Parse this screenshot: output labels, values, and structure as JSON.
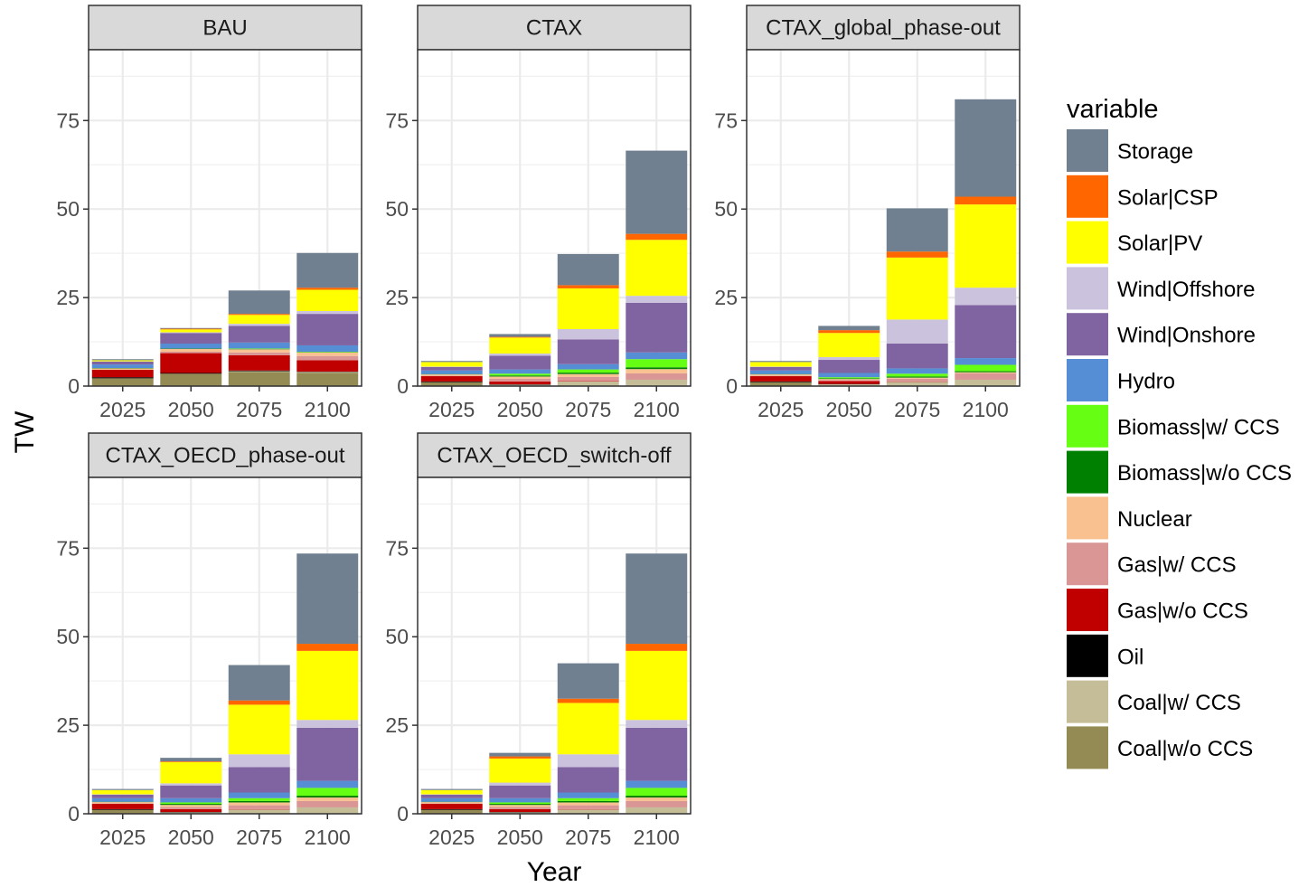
{
  "chart_data": {
    "type": "bar",
    "stacked": true,
    "facet": true,
    "xlabel": "Year",
    "ylabel": "TW",
    "ylim": [
      0,
      95
    ],
    "yticks": [
      0,
      25,
      50,
      75
    ],
    "categories": [
      "2025",
      "2050",
      "2075",
      "2100"
    ],
    "grid": true,
    "legend": {
      "title": "variable",
      "placement": "right",
      "entries": [
        {
          "name": "Storage",
          "color": "#708090"
        },
        {
          "name": "Solar|CSP",
          "color": "#FF6600"
        },
        {
          "name": "Solar|PV",
          "color": "#FFFF00"
        },
        {
          "name": "Wind|Offshore",
          "color": "#CBC3DD"
        },
        {
          "name": "Wind|Onshore",
          "color": "#8064A2"
        },
        {
          "name": "Hydro",
          "color": "#558ED5"
        },
        {
          "name": "Biomass|w/ CCS",
          "color": "#66FF13"
        },
        {
          "name": "Biomass|w/o CCS",
          "color": "#008000"
        },
        {
          "name": "Nuclear",
          "color": "#F9C090"
        },
        {
          "name": "Gas|w/ CCS",
          "color": "#D99694"
        },
        {
          "name": "Gas|w/o CCS",
          "color": "#C00000"
        },
        {
          "name": "Oil",
          "color": "#000000"
        },
        {
          "name": "Coal|w/ CCS",
          "color": "#C4BD97"
        },
        {
          "name": "Coal|w/o CCS",
          "color": "#948A54"
        }
      ]
    },
    "stack_order": [
      "Coal|w/o CCS",
      "Coal|w/ CCS",
      "Oil",
      "Gas|w/o CCS",
      "Gas|w/ CCS",
      "Nuclear",
      "Biomass|w/o CCS",
      "Biomass|w/ CCS",
      "Hydro",
      "Wind|Onshore",
      "Wind|Offshore",
      "Solar|PV",
      "Solar|CSP",
      "Storage"
    ],
    "panels": [
      {
        "title": "BAU",
        "series": [
          {
            "name": "Coal|w/o CCS",
            "values": [
              2.2,
              3.5,
              4.0,
              3.7
            ]
          },
          {
            "name": "Coal|w/ CCS",
            "values": [
              0,
              0,
              0.2,
              0.3
            ]
          },
          {
            "name": "Oil",
            "values": [
              0.3,
              0.2,
              0.2,
              0.1
            ]
          },
          {
            "name": "Gas|w/o CCS",
            "values": [
              2.1,
              5.6,
              4.3,
              3.2
            ]
          },
          {
            "name": "Gas|w/ CCS",
            "values": [
              0,
              0.4,
              0.8,
              1.2
            ]
          },
          {
            "name": "Nuclear",
            "values": [
              0.4,
              0.8,
              0.9,
              1.0
            ]
          },
          {
            "name": "Biomass|w/o CCS",
            "values": [
              0.1,
              0.1,
              0.1,
              0.1
            ]
          },
          {
            "name": "Biomass|w/ CCS",
            "values": [
              0,
              0,
              0.1,
              0.1
            ]
          },
          {
            "name": "Hydro",
            "values": [
              1.0,
              1.4,
              1.7,
              1.8
            ]
          },
          {
            "name": "Wind|Onshore",
            "values": [
              0.8,
              3.0,
              4.7,
              8.9
            ]
          },
          {
            "name": "Wind|Offshore",
            "values": [
              0.1,
              0.2,
              0.6,
              0.8
            ]
          },
          {
            "name": "Solar|PV",
            "values": [
              0.3,
              0.8,
              2.5,
              6.0
            ]
          },
          {
            "name": "Solar|CSP",
            "values": [
              0,
              0.2,
              0.3,
              0.6
            ]
          },
          {
            "name": "Storage",
            "values": [
              0.3,
              0.2,
              6.6,
              9.8
            ]
          }
        ]
      },
      {
        "title": "CTAX",
        "series": [
          {
            "name": "Coal|w/o CCS",
            "values": [
              1.1,
              0.2,
              0,
              0
            ]
          },
          {
            "name": "Coal|w/ CCS",
            "values": [
              0,
              0.2,
              1.3,
              1.8
            ]
          },
          {
            "name": "Oil",
            "values": [
              0.2,
              0.1,
              0,
              0
            ]
          },
          {
            "name": "Gas|w/o CCS",
            "values": [
              1.5,
              0.8,
              0.1,
              0
            ]
          },
          {
            "name": "Gas|w/ CCS",
            "values": [
              0.1,
              0.8,
              1.2,
              1.8
            ]
          },
          {
            "name": "Nuclear",
            "values": [
              0.4,
              0.6,
              0.8,
              1.2
            ]
          },
          {
            "name": "Biomass|w/o CCS",
            "values": [
              0.1,
              0.3,
              0.4,
              0.5
            ]
          },
          {
            "name": "Biomass|w/ CCS",
            "values": [
              0,
              0.5,
              0.9,
              2.3
            ]
          },
          {
            "name": "Hydro",
            "values": [
              1.0,
              1.2,
              1.5,
              1.9
            ]
          },
          {
            "name": "Wind|Onshore",
            "values": [
              1.0,
              3.9,
              7.0,
              14.0
            ]
          },
          {
            "name": "Wind|Offshore",
            "values": [
              0.1,
              0.6,
              2.9,
              2.0
            ]
          },
          {
            "name": "Solar|PV",
            "values": [
              1.3,
              4.5,
              11.5,
              15.8
            ]
          },
          {
            "name": "Solar|CSP",
            "values": [
              0,
              0.2,
              0.9,
              1.7
            ]
          },
          {
            "name": "Storage",
            "values": [
              0.3,
              0.8,
              8.8,
              23.5
            ]
          }
        ]
      },
      {
        "title": "CTAX_global_phase-out",
        "series": [
          {
            "name": "Coal|w/o CCS",
            "values": [
              1.1,
              0.2,
              0,
              0
            ]
          },
          {
            "name": "Coal|w/ CCS",
            "values": [
              0,
              0.3,
              1.2,
              1.8
            ]
          },
          {
            "name": "Oil",
            "values": [
              0.2,
              0.1,
              0,
              0
            ]
          },
          {
            "name": "Gas|w/o CCS",
            "values": [
              1.5,
              0.8,
              0.1,
              0
            ]
          },
          {
            "name": "Gas|w/ CCS",
            "values": [
              0.1,
              0.3,
              0.8,
              1.8
            ]
          },
          {
            "name": "Nuclear",
            "values": [
              0.4,
              0.3,
              0.3,
              0.3
            ]
          },
          {
            "name": "Biomass|w/o CCS",
            "values": [
              0.1,
              0.2,
              0.3,
              0.3
            ]
          },
          {
            "name": "Biomass|w/ CCS",
            "values": [
              0,
              0.3,
              0.8,
              1.8
            ]
          },
          {
            "name": "Hydro",
            "values": [
              1.0,
              1.2,
              1.5,
              1.9
            ]
          },
          {
            "name": "Wind|Onshore",
            "values": [
              1.0,
              3.7,
              7.0,
              15.0
            ]
          },
          {
            "name": "Wind|Offshore",
            "values": [
              0.1,
              0.8,
              6.8,
              4.9
            ]
          },
          {
            "name": "Solar|PV",
            "values": [
              1.3,
              6.8,
              17.5,
              23.5
            ]
          },
          {
            "name": "Solar|CSP",
            "values": [
              0,
              0.8,
              1.7,
              2.2
            ]
          },
          {
            "name": "Storage",
            "values": [
              0.3,
              1.2,
              12.2,
              27.5
            ]
          }
        ]
      },
      {
        "title": "CTAX_OECD_phase-out",
        "series": [
          {
            "name": "Coal|w/o CCS",
            "values": [
              1.1,
              0.2,
              0,
              0
            ]
          },
          {
            "name": "Coal|w/ CCS",
            "values": [
              0,
              0.2,
              1.2,
              1.8
            ]
          },
          {
            "name": "Oil",
            "values": [
              0.2,
              0.1,
              0,
              0
            ]
          },
          {
            "name": "Gas|w/o CCS",
            "values": [
              1.5,
              0.8,
              0.1,
              0
            ]
          },
          {
            "name": "Gas|w/ CCS",
            "values": [
              0.1,
              0.6,
              1.1,
              1.8
            ]
          },
          {
            "name": "Nuclear",
            "values": [
              0.4,
              0.6,
              0.8,
              1.0
            ]
          },
          {
            "name": "Biomass|w/o CCS",
            "values": [
              0.1,
              0.3,
              0.4,
              0.5
            ]
          },
          {
            "name": "Biomass|w/ CCS",
            "values": [
              0,
              0.4,
              0.8,
              2.2
            ]
          },
          {
            "name": "Hydro",
            "values": [
              1.0,
              1.2,
              1.6,
              2.0
            ]
          },
          {
            "name": "Wind|Onshore",
            "values": [
              1.0,
              3.6,
              7.2,
              15.0
            ]
          },
          {
            "name": "Wind|Offshore",
            "values": [
              0.1,
              0.6,
              3.6,
              2.2
            ]
          },
          {
            "name": "Solar|PV",
            "values": [
              1.2,
              6.0,
              14.0,
              19.5
            ]
          },
          {
            "name": "Solar|CSP",
            "values": [
              0,
              0.2,
              1.2,
              2.0
            ]
          },
          {
            "name": "Storage",
            "values": [
              0.3,
              1.0,
              10.0,
              25.5
            ]
          }
        ]
      },
      {
        "title": "CTAX_OECD_switch-off",
        "series": [
          {
            "name": "Coal|w/o CCS",
            "values": [
              1.1,
              0.2,
              0,
              0
            ]
          },
          {
            "name": "Coal|w/ CCS",
            "values": [
              0,
              0.2,
              1.2,
              1.8
            ]
          },
          {
            "name": "Oil",
            "values": [
              0.2,
              0.1,
              0,
              0
            ]
          },
          {
            "name": "Gas|w/o CCS",
            "values": [
              1.5,
              0.8,
              0.1,
              0
            ]
          },
          {
            "name": "Gas|w/ CCS",
            "values": [
              0.1,
              0.6,
              1.1,
              1.8
            ]
          },
          {
            "name": "Nuclear",
            "values": [
              0.4,
              0.6,
              0.8,
              1.0
            ]
          },
          {
            "name": "Biomass|w/o CCS",
            "values": [
              0.1,
              0.3,
              0.4,
              0.5
            ]
          },
          {
            "name": "Biomass|w/ CCS",
            "values": [
              0,
              0.4,
              0.8,
              2.2
            ]
          },
          {
            "name": "Hydro",
            "values": [
              1.0,
              1.2,
              1.6,
              2.0
            ]
          },
          {
            "name": "Wind|Onshore",
            "values": [
              1.0,
              3.6,
              7.2,
              15.0
            ]
          },
          {
            "name": "Wind|Offshore",
            "values": [
              0.1,
              0.8,
              3.6,
              2.2
            ]
          },
          {
            "name": "Solar|PV",
            "values": [
              1.2,
              6.8,
              14.5,
              19.5
            ]
          },
          {
            "name": "Solar|CSP",
            "values": [
              0,
              0.6,
              1.2,
              2.0
            ]
          },
          {
            "name": "Storage",
            "values": [
              0.3,
              1.0,
              10.0,
              25.5
            ]
          }
        ]
      }
    ]
  }
}
